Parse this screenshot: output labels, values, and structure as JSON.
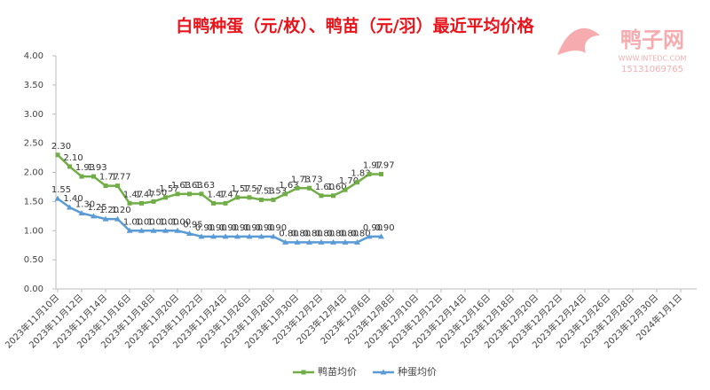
{
  "chart_data": {
    "type": "line",
    "title": "白鸭种蛋（元/枚）、鸭苗（元/羽）最近平均价格",
    "watermark": {
      "name": "鸭子网",
      "site": "WWW.INTEDC.COM",
      "phone": "15131069765"
    },
    "categories": [
      "2023年11月10日",
      null,
      "2023年11月12日",
      null,
      "2023年11月14日",
      null,
      "2023年11月16日",
      null,
      "2023年11月18日",
      null,
      "2023年11月20日",
      null,
      "2023年11月22日",
      null,
      "2023年11月24日",
      null,
      "2023年11月26日",
      null,
      "2023年11月28日",
      null,
      "2023年11月30日",
      null,
      "2023年12月2日",
      null,
      "2023年12月4日",
      null,
      "2023年12月6日",
      null,
      "2023年12月8日",
      null,
      "2023年12月10日",
      null,
      "2023年12月12日",
      null,
      "2023年12月14日",
      null,
      "2023年12月16日",
      null,
      "2023年12月18日",
      null,
      "2023年12月20日",
      null,
      "2023年12月22日",
      null,
      "2023年12月24日",
      null,
      "2023年12月26日",
      null,
      "2023年12月28日",
      null,
      "2023年12月30日",
      null,
      "2024年1月1日"
    ],
    "series": [
      {
        "name": "鸭苗均价",
        "color": "#70ad47",
        "values": [
          2.3,
          2.1,
          1.93,
          1.93,
          1.77,
          1.77,
          1.47,
          1.47,
          1.5,
          1.57,
          1.63,
          1.63,
          1.63,
          1.47,
          1.47,
          1.57,
          1.57,
          1.53,
          1.53,
          1.63,
          1.73,
          1.73,
          1.6,
          1.6,
          1.7,
          1.83,
          1.97,
          1.97,
          null,
          null,
          null,
          null,
          null,
          null,
          null,
          null,
          null,
          null,
          null,
          null,
          null,
          null,
          null,
          null,
          null,
          null,
          null,
          null,
          null,
          null,
          null,
          null,
          null
        ],
        "value_labels": [
          "2.30",
          "2.10",
          "1.93",
          "1.93",
          "1.77",
          "1.77",
          "1.47",
          "1.47",
          "1.50",
          "1.57",
          "1.63",
          "1.63",
          "1.63",
          "1.47",
          "1.47",
          "1.57",
          "1.57",
          "1.53",
          "1.53",
          "1.63",
          "1.73",
          "1.73",
          "1.60",
          "1.60",
          "1.70",
          "1.83",
          "1.97",
          "1.97",
          null,
          null,
          null,
          null,
          null,
          null,
          null,
          null,
          null,
          null,
          null,
          null,
          null,
          null,
          null,
          null,
          null,
          null,
          null,
          null,
          null,
          null,
          null,
          null,
          null
        ]
      },
      {
        "name": "种蛋均价",
        "color": "#5b9bd5",
        "values": [
          1.55,
          1.4,
          1.3,
          1.25,
          1.2,
          1.2,
          1.0,
          1.0,
          1.0,
          1.0,
          1.0,
          0.95,
          0.9,
          0.9,
          0.9,
          0.9,
          0.9,
          0.9,
          0.9,
          0.8,
          0.8,
          0.8,
          0.8,
          0.8,
          0.8,
          0.8,
          0.9,
          0.9,
          null,
          null,
          null,
          null,
          null,
          null,
          null,
          null,
          null,
          null,
          null,
          null,
          null,
          null,
          null,
          null,
          null,
          null,
          null,
          null,
          null,
          null,
          null,
          null,
          null
        ],
        "value_labels": [
          "1.55",
          "1.40",
          "1.30",
          "1.25",
          "1.20",
          "1.20",
          "1.00",
          "1.00",
          "1.00",
          "1.00",
          "1.00",
          "0.95",
          "0.90",
          "0.90",
          "0.90",
          "0.90",
          "0.90",
          "0.90",
          "0.90",
          "0.80",
          "0.80",
          "0.80",
          "0.80",
          "0.80",
          "0.80",
          "0.80",
          "0.90",
          "0.90",
          null,
          null,
          null,
          null,
          null,
          null,
          null,
          null,
          null,
          null,
          null,
          null,
          null,
          null,
          null,
          null,
          null,
          null,
          null,
          null,
          null,
          null,
          null,
          null,
          null
        ]
      }
    ],
    "ylim": [
      0,
      4
    ],
    "yticks": [
      {
        "value": 0,
        "label": "0.00"
      },
      {
        "value": 0.5,
        "label": "0.50"
      },
      {
        "value": 1,
        "label": "1.00"
      },
      {
        "value": 1.5,
        "label": "1.50"
      },
      {
        "value": 2,
        "label": "2.00"
      },
      {
        "value": 2.5,
        "label": "2.50"
      },
      {
        "value": 3,
        "label": "3.00"
      },
      {
        "value": 3.5,
        "label": "3.50"
      },
      {
        "value": 4,
        "label": "4.00"
      }
    ],
    "legend": "bottom"
  }
}
